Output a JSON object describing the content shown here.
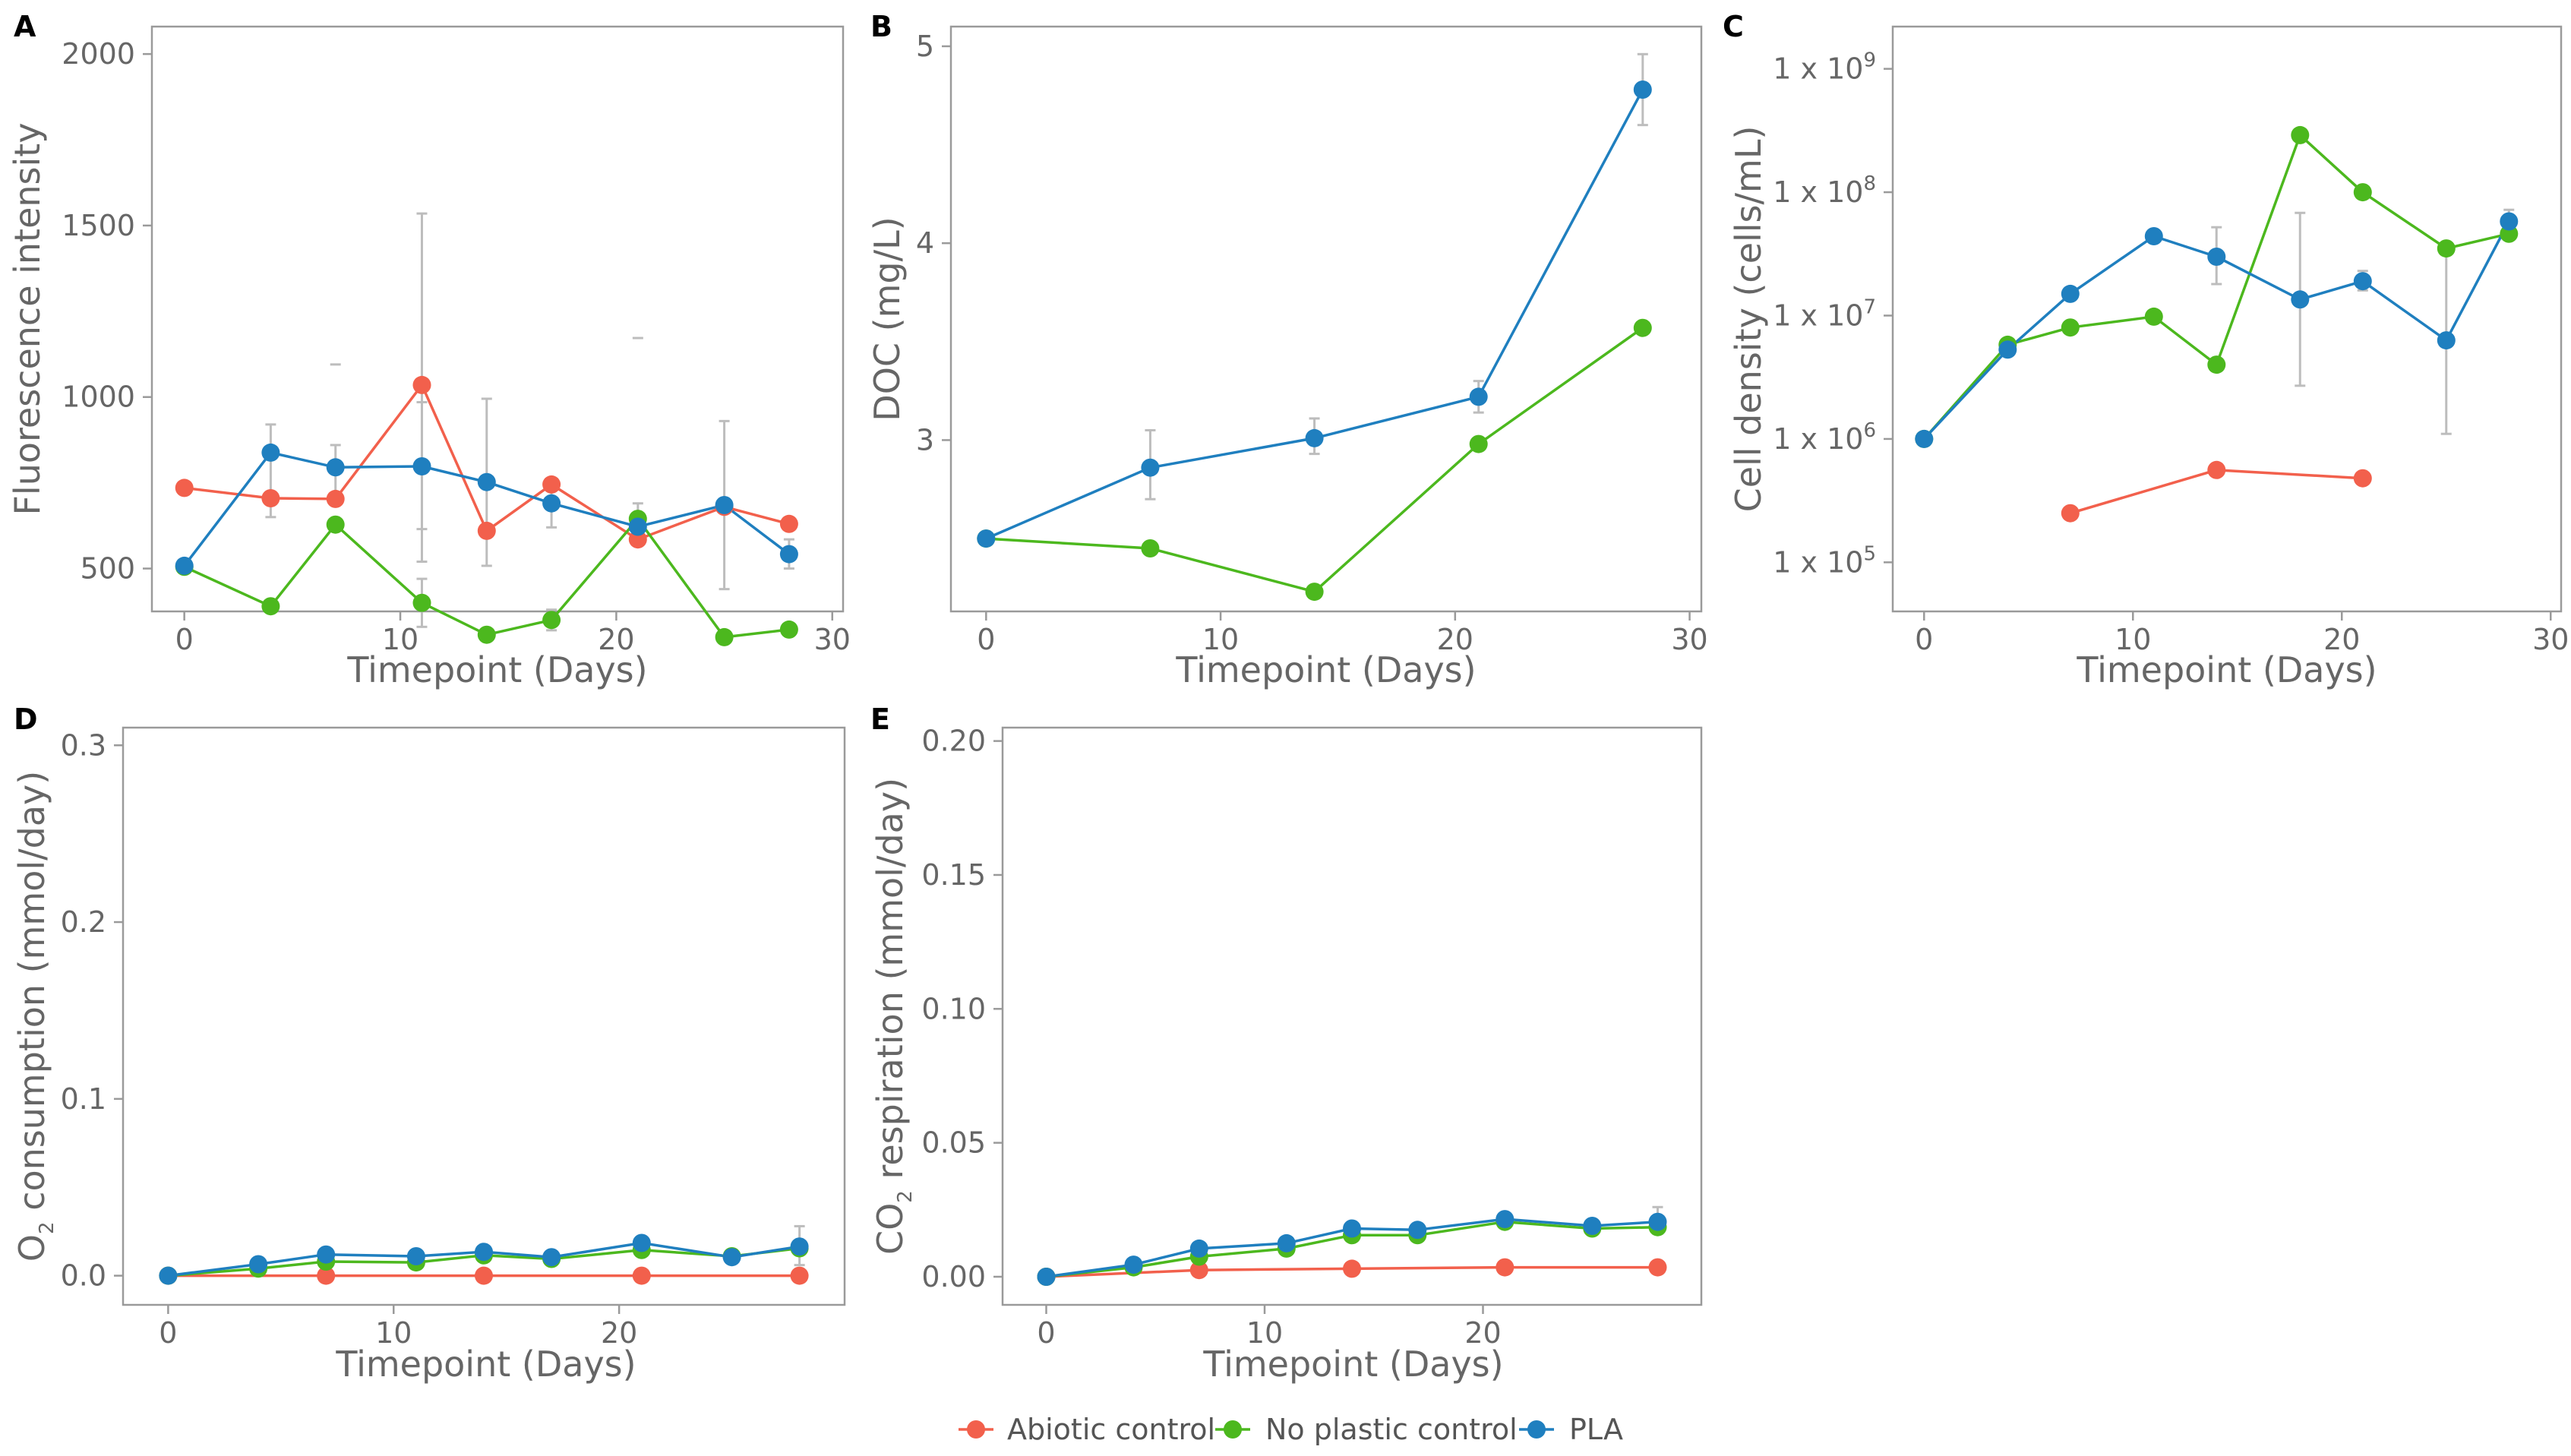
{
  "series_colors": {
    "Abiotic control": "#F2604C",
    "No plastic control": "#4CB81E",
    "PLA": "#1F7FBF"
  },
  "legend": [
    {
      "label": "Abiotic control",
      "color": "#F2604C"
    },
    {
      "label": "No plastic control",
      "color": "#4CB81E"
    },
    {
      "label": "PLA",
      "color": "#1F7FBF"
    }
  ],
  "chart_data": [
    {
      "panel": "A",
      "type": "line",
      "xlabel": "Timepoint (Days)",
      "ylabel": "Fluorescence intensity",
      "xlim": [
        -1.5,
        30.5
      ],
      "ylim": [
        375,
        2080
      ],
      "xticks": [
        0,
        10,
        20,
        30
      ],
      "yticks": [
        {
          "v": 500,
          "label": "500"
        },
        {
          "v": 1000,
          "label": "1000"
        },
        {
          "v": 1500,
          "label": "1500"
        },
        {
          "v": 2000,
          "label": "2000"
        }
      ],
      "series": [
        {
          "name": "Abiotic control",
          "x": [
            0,
            4,
            7,
            11,
            14,
            17,
            21,
            25,
            28
          ],
          "values": [
            735,
            705,
            703,
            1035,
            610,
            745,
            585,
            680,
            630
          ],
          "err": [
            null,
            null,
            null,
            [
              520,
              1535
            ],
            null,
            null,
            null,
            null,
            null
          ]
        },
        {
          "name": "No plastic control",
          "x": [
            0,
            4,
            7,
            11,
            14,
            17,
            21,
            25,
            28
          ],
          "values": [
            505,
            390,
            628,
            400,
            307,
            350,
            645,
            300,
            322
          ],
          "err": [
            null,
            null,
            null,
            [
              330,
              470
            ],
            null,
            [
              320,
              380
            ],
            [
              600,
              690
            ],
            null,
            null
          ]
        },
        {
          "name": "PLA",
          "x": [
            0,
            4,
            7,
            11,
            14,
            17,
            21,
            25,
            28
          ],
          "values": [
            508,
            838,
            795,
            798,
            752,
            690,
            622,
            685,
            542
          ],
          "err": [
            null,
            [
              650,
              920
            ],
            [
              700,
              860
            ],
            [
              615,
              985
            ],
            [
              508,
              995
            ],
            [
              620,
              760
            ],
            null,
            [
              440,
              930
            ],
            [
              500,
              585
            ]
          ]
        }
      ],
      "stray_error_caps": [
        [
          7,
          1095
        ],
        [
          21,
          1172
        ]
      ]
    },
    {
      "panel": "B",
      "type": "line",
      "xlabel": "Timepoint (Days)",
      "ylabel": "DOC (mg/L)",
      "xlim": [
        -1.5,
        30.5
      ],
      "ylim": [
        2.13,
        5.1
      ],
      "xticks": [
        0,
        10,
        20,
        30
      ],
      "yticks": [
        {
          "v": 3,
          "label": "3"
        },
        {
          "v": 4,
          "label": "4"
        },
        {
          "v": 5,
          "label": "5"
        }
      ],
      "series": [
        {
          "name": "No plastic control",
          "x": [
            0,
            7,
            14,
            21,
            28
          ],
          "values": [
            2.5,
            2.45,
            2.23,
            2.98,
            3.57
          ],
          "err": [
            null,
            null,
            null,
            null,
            null
          ]
        },
        {
          "name": "PLA",
          "x": [
            0,
            7,
            14,
            21,
            28
          ],
          "values": [
            2.5,
            2.86,
            3.01,
            3.22,
            4.78
          ],
          "err": [
            null,
            [
              2.7,
              3.05
            ],
            [
              2.93,
              3.11
            ],
            [
              3.14,
              3.3
            ],
            [
              4.6,
              4.96
            ]
          ]
        }
      ]
    },
    {
      "panel": "C",
      "type": "line",
      "yscale": "log",
      "xlabel": "Timepoint (Days)",
      "ylabel": "Cell density (cells/mL)",
      "xlim": [
        -1.5,
        30.5
      ],
      "ylim": [
        40000,
        2200000000
      ],
      "xticks": [
        0,
        10,
        20,
        30
      ],
      "yticks": [
        {
          "v": 100000,
          "base": "1 x 10",
          "exp": "5"
        },
        {
          "v": 1000000,
          "base": "1 x 10",
          "exp": "6"
        },
        {
          "v": 10000000,
          "base": "1 x 10",
          "exp": "7"
        },
        {
          "v": 100000000,
          "base": "1 x 10",
          "exp": "8"
        },
        {
          "v": 1000000000,
          "base": "1 x 10",
          "exp": "9"
        }
      ],
      "series": [
        {
          "name": "Abiotic control",
          "x": [
            7,
            14,
            21
          ],
          "values": [
            250000,
            560000,
            480000
          ],
          "err": [
            null,
            null,
            null
          ]
        },
        {
          "name": "No plastic control",
          "x": [
            0,
            4,
            7,
            11,
            14,
            18,
            21,
            25,
            28
          ],
          "values": [
            1000000,
            5800000,
            8000000,
            9800000,
            4000000,
            290000000,
            100000000,
            35000000,
            46000000
          ],
          "err": [
            null,
            null,
            null,
            null,
            null,
            [
              2700000,
              68000000
            ],
            null,
            [
              1100000,
              32000000
            ],
            null
          ]
        },
        {
          "name": "PLA",
          "x": [
            0,
            4,
            7,
            11,
            14,
            18,
            21,
            25,
            28
          ],
          "values": [
            1000000,
            5300000,
            15000000,
            44000000,
            30000000,
            13500000,
            19000000,
            6300000,
            58000000
          ],
          "err": [
            null,
            null,
            null,
            null,
            [
              18000000,
              52000000
            ],
            null,
            [
              16000000,
              23000000
            ],
            null,
            [
              45000000,
              72000000
            ]
          ]
        }
      ]
    },
    {
      "panel": "D",
      "type": "line",
      "xlabel": "Timepoint (Days)",
      "ylabel_pre": "O",
      "ylabel_sub": "2",
      "ylabel_post": " consumption (mmol/day)",
      "xlim": [
        -2,
        30
      ],
      "ylim": [
        -0.0165,
        0.31
      ],
      "xticks": [
        0,
        10,
        20
      ],
      "yticks": [
        {
          "v": 0,
          "label": "0.0"
        },
        {
          "v": 0.1,
          "label": "0.1"
        },
        {
          "v": 0.2,
          "label": "0.2"
        },
        {
          "v": 0.3,
          "label": "0.3"
        }
      ],
      "series": [
        {
          "name": "Abiotic control",
          "x": [
            0,
            7,
            14,
            21,
            28
          ],
          "values": [
            0,
            0,
            0,
            0,
            0
          ],
          "err": [
            null,
            null,
            null,
            null,
            null
          ]
        },
        {
          "name": "No plastic control",
          "x": [
            0,
            4,
            7,
            11,
            14,
            17,
            21,
            25,
            28
          ],
          "values": [
            0,
            0.004,
            0.008,
            0.0075,
            0.0115,
            0.0095,
            0.0145,
            0.011,
            0.0155
          ],
          "err": [
            null,
            null,
            null,
            null,
            null,
            null,
            null,
            null,
            null
          ]
        },
        {
          "name": "PLA",
          "x": [
            0,
            4,
            7,
            11,
            14,
            17,
            21,
            25,
            28
          ],
          "values": [
            0,
            0.0065,
            0.012,
            0.011,
            0.0135,
            0.0105,
            0.0185,
            0.0105,
            0.0165
          ],
          "err": [
            null,
            null,
            null,
            null,
            null,
            null,
            null,
            null,
            [
              0.006,
              0.028
            ]
          ]
        }
      ]
    },
    {
      "panel": "E",
      "type": "line",
      "xlabel": "Timepoint (Days)",
      "ylabel_pre": "CO",
      "ylabel_sub": "2",
      "ylabel_post": " respiration (mmol/day)",
      "xlim": [
        -2,
        30
      ],
      "ylim": [
        -0.0105,
        0.205
      ],
      "xticks": [
        0,
        10,
        20
      ],
      "yticks": [
        {
          "v": 0,
          "label": "0.00"
        },
        {
          "v": 0.05,
          "label": "0.05"
        },
        {
          "v": 0.1,
          "label": "0.10"
        },
        {
          "v": 0.15,
          "label": "0.15"
        },
        {
          "v": 0.2,
          "label": "0.20"
        }
      ],
      "series": [
        {
          "name": "Abiotic control",
          "x": [
            0,
            7,
            14,
            21,
            28
          ],
          "values": [
            0,
            0.0025,
            0.003,
            0.0035,
            0.0035
          ],
          "err": [
            null,
            null,
            null,
            null,
            null
          ]
        },
        {
          "name": "No plastic control",
          "x": [
            0,
            4,
            7,
            11,
            14,
            17,
            21,
            25,
            28
          ],
          "values": [
            0,
            0.0035,
            0.0075,
            0.0105,
            0.0155,
            0.0155,
            0.0205,
            0.018,
            0.0185
          ],
          "err": [
            null,
            null,
            null,
            null,
            null,
            null,
            null,
            null,
            null
          ]
        },
        {
          "name": "PLA",
          "x": [
            0,
            4,
            7,
            11,
            14,
            17,
            21,
            25,
            28
          ],
          "values": [
            0,
            0.0045,
            0.0105,
            0.0125,
            0.018,
            0.0175,
            0.0215,
            0.019,
            0.0205
          ],
          "err": [
            null,
            null,
            null,
            null,
            null,
            null,
            null,
            null,
            [
              0.016,
              0.026
            ]
          ]
        }
      ]
    }
  ]
}
